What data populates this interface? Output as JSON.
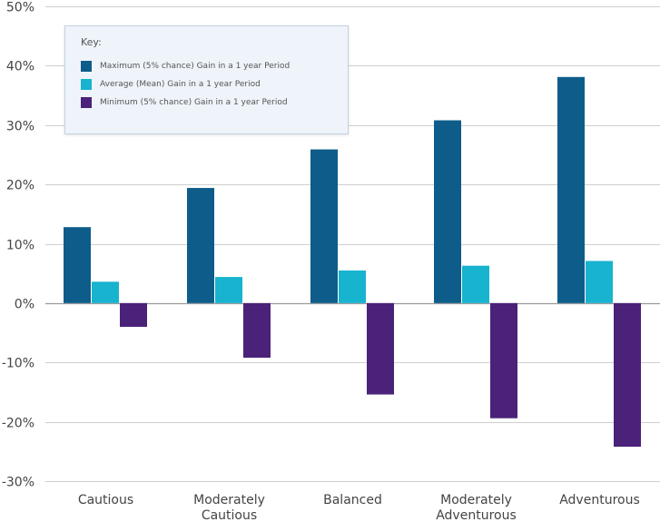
{
  "chart_data": {
    "type": "bar",
    "categories": [
      [
        "Cautious"
      ],
      [
        "Moderately",
        "Cautious"
      ],
      [
        "Balanced"
      ],
      [
        "Moderately",
        "Adventurous"
      ],
      [
        "Adventurous"
      ]
    ],
    "series": [
      {
        "name": "Maximum (5% chance) Gain in a 1 year Period",
        "color": "#0e5c8a",
        "values": [
          12.8,
          19.4,
          25.9,
          30.8,
          38.1
        ]
      },
      {
        "name": "Average (Mean) Gain in a 1 year Period",
        "color": "#17b3cf",
        "values": [
          3.6,
          4.4,
          5.5,
          6.3,
          7.1
        ]
      },
      {
        "name": "Minimum (5% chance) Gain in a 1 year Period",
        "color": "#4a2279",
        "values": [
          -4.0,
          -9.2,
          -15.4,
          -19.4,
          -24.2
        ]
      }
    ],
    "ylim": [
      -30,
      50
    ],
    "yticks": [
      50,
      40,
      30,
      20,
      10,
      0,
      -10,
      -20,
      -30
    ],
    "ytick_labels": [
      "50%",
      "40%",
      "30%",
      "20%",
      "10%",
      "0%",
      "-10%",
      "-20%",
      "-30%"
    ],
    "grid": true,
    "legend_title": "Key:",
    "legend_position": "top-left"
  }
}
